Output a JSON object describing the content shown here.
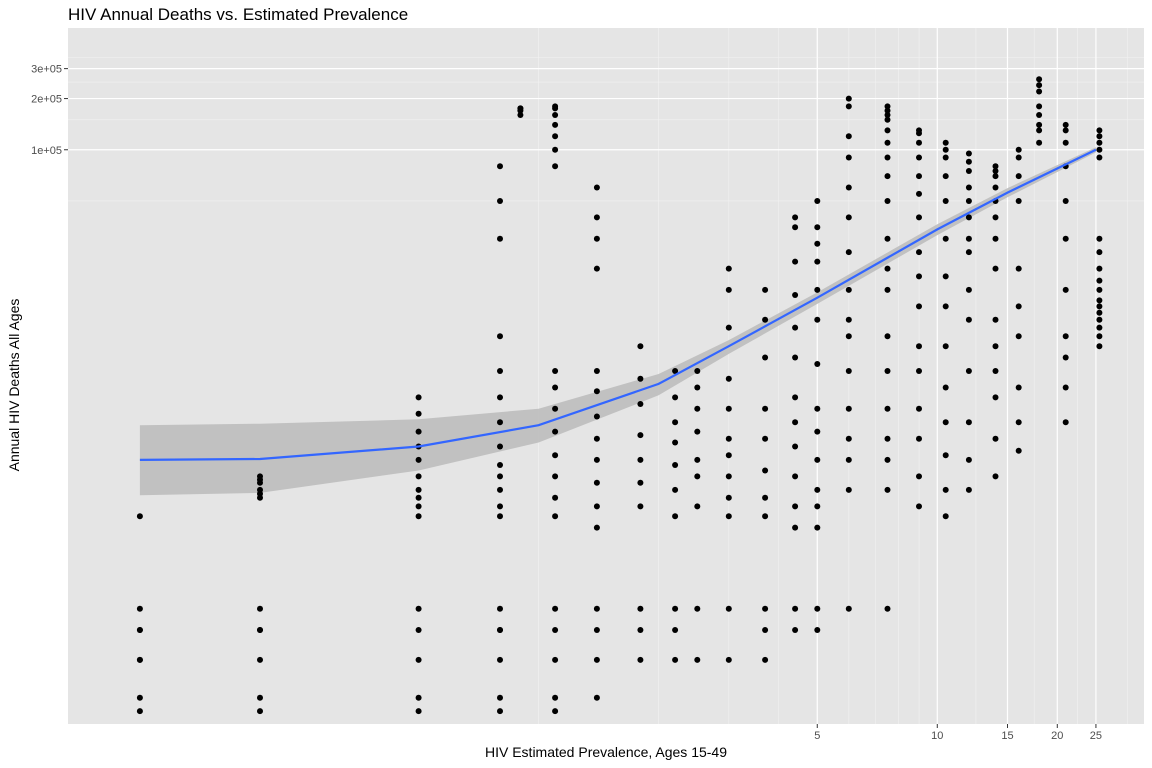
{
  "chart_data": {
    "type": "scatter",
    "title": "HIV Annual Deaths vs. Estimated Prevalence",
    "xlabel": "HIV Estimated Prevalence, Ages 15-49",
    "ylabel": "Annual HIV Deaths All Ages",
    "x_scale": "log10",
    "y_scale": "log10",
    "xlim": [
      0.066,
      33
    ],
    "ylim": [
      42,
      520000
    ],
    "x_ticks": [
      {
        "value": 5,
        "label": "5"
      },
      {
        "value": 10,
        "label": "10"
      },
      {
        "value": 15,
        "label": "15"
      },
      {
        "value": 20,
        "label": "20"
      },
      {
        "value": 25,
        "label": "25"
      }
    ],
    "y_ticks": [
      {
        "value": 100000,
        "label": "1e+05"
      },
      {
        "value": 200000,
        "label": "2e+05"
      },
      {
        "value": 300000,
        "label": "3e+05"
      }
    ],
    "grid": true,
    "background": "#e5e5e5",
    "point_color": "#000000",
    "fit_color": "#3366ff",
    "band_color": "#bdbdbd",
    "smooth": {
      "method": "lm",
      "x": [
        0.1,
        0.2,
        0.5,
        1,
        2,
        3,
        5,
        10,
        15,
        25
      ],
      "y": [
        1500,
        1520,
        1800,
        2400,
        4200,
        7000,
        13500,
        34000,
        56000,
        100000
      ],
      "y_lower": [
        930,
        960,
        1300,
        1900,
        3600,
        6300,
        12400,
        31500,
        52500,
        96500
      ],
      "y_upper": [
        2400,
        2450,
        2600,
        3000,
        4800,
        7600,
        14500,
        36500,
        59500,
        103500
      ]
    },
    "series": [
      {
        "x": 0.1,
        "y": [
          700,
          150,
          100,
          50,
          60,
          200,
          150,
          100
        ]
      },
      {
        "x": 0.2,
        "y": [
          1200,
          1100,
          1000,
          950,
          900,
          1150,
          150,
          100,
          50,
          60,
          200,
          150
        ]
      },
      {
        "x": 0.5,
        "y": [
          3500,
          2800,
          2200,
          1800,
          1500,
          1200,
          1000,
          900,
          800,
          700,
          150,
          100,
          50,
          60,
          200
        ]
      },
      {
        "x": 0.8,
        "y": [
          80000,
          50000,
          30000,
          8000,
          5000,
          3500,
          2500,
          1800,
          1400,
          1200,
          1000,
          800,
          700,
          150,
          100,
          50,
          60,
          200,
          150
        ]
      },
      {
        "x": 0.9,
        "y": [
          160000,
          170000,
          175000,
          175000
        ]
      },
      {
        "x": 1.1,
        "y": [
          180000,
          175000,
          160000,
          140000,
          120000,
          100000,
          80000,
          5000,
          4000,
          3000,
          2200,
          1600,
          1200,
          900,
          700,
          150,
          100,
          50,
          60,
          200
        ]
      },
      {
        "x": 1.4,
        "y": [
          60000,
          40000,
          30000,
          20000,
          5000,
          3800,
          2700,
          2000,
          1500,
          1100,
          800,
          600,
          150,
          100,
          60,
          200
        ]
      },
      {
        "x": 1.8,
        "y": [
          7000,
          4500,
          3200,
          2100,
          1500,
          1100,
          800,
          150,
          100,
          200
        ]
      },
      {
        "x": 2.2,
        "y": [
          5000,
          3500,
          2500,
          1900,
          1400,
          1000,
          700,
          150,
          100,
          200
        ]
      },
      {
        "x": 2.5,
        "y": [
          5000,
          4000,
          3000,
          2200,
          1500,
          1200,
          800,
          100,
          200
        ]
      },
      {
        "x": 3.0,
        "y": [
          20000,
          15000,
          9000,
          4500,
          3000,
          2000,
          1600,
          1200,
          900,
          700,
          100,
          200
        ]
      },
      {
        "x": 3.7,
        "y": [
          15000,
          10000,
          6000,
          3000,
          2000,
          1300,
          900,
          700,
          100,
          150,
          200
        ]
      },
      {
        "x": 4.4,
        "y": [
          40000,
          35000,
          22000,
          14000,
          9000,
          6000,
          3500,
          2500,
          1800,
          1200,
          800,
          600,
          150,
          200
        ]
      },
      {
        "x": 5.0,
        "y": [
          50000,
          35000,
          28000,
          22000,
          15000,
          10000,
          5500,
          3000,
          2200,
          1500,
          1000,
          800,
          600,
          200,
          150
        ]
      },
      {
        "x": 6.0,
        "y": [
          200000,
          180000,
          120000,
          90000,
          60000,
          40000,
          25000,
          15000,
          10000,
          8000,
          5000,
          3000,
          2000,
          1500,
          1000,
          200
        ]
      },
      {
        "x": 7.5,
        "y": [
          180000,
          170000,
          160000,
          150000,
          130000,
          110000,
          90000,
          70000,
          50000,
          30000,
          20000,
          15000,
          8000,
          5000,
          3000,
          2000,
          1500,
          1000,
          200
        ]
      },
      {
        "x": 9.0,
        "y": [
          130000,
          125000,
          110000,
          90000,
          70000,
          55000,
          40000,
          25000,
          18000,
          12000,
          7000,
          5000,
          3000,
          2000,
          1200,
          800
        ]
      },
      {
        "x": 10.5,
        "y": [
          110000,
          100000,
          90000,
          70000,
          50000,
          30000,
          18000,
          12000,
          7000,
          4000,
          2500,
          1600,
          1000,
          700
        ]
      },
      {
        "x": 12.0,
        "y": [
          95000,
          85000,
          75000,
          60000,
          50000,
          40000,
          30000,
          25000,
          15000,
          10000,
          5000,
          2500,
          1500,
          1000
        ]
      },
      {
        "x": 14.0,
        "y": [
          80000,
          75000,
          70000,
          60000,
          50000,
          40000,
          30000,
          20000,
          10000,
          7000,
          5000,
          3500,
          2000,
          1200
        ]
      },
      {
        "x": 16.0,
        "y": [
          100000,
          90000,
          70000,
          50000,
          20000,
          12000,
          8000,
          4000,
          2500,
          1700
        ]
      },
      {
        "x": 18.0,
        "y": [
          260000,
          240000,
          220000,
          180000,
          160000,
          140000,
          130000,
          110000
        ]
      },
      {
        "x": 21.0,
        "y": [
          140000,
          130000,
          110000,
          80000,
          50000,
          30000,
          15000,
          8000,
          6000,
          4000,
          2500
        ]
      },
      {
        "x": 25.5,
        "y": [
          130000,
          120000,
          110000,
          100000,
          90000,
          30000,
          25000,
          20000,
          17000,
          15000,
          13000,
          12000,
          11000,
          10000,
          9000,
          8000,
          7000
        ]
      }
    ]
  }
}
